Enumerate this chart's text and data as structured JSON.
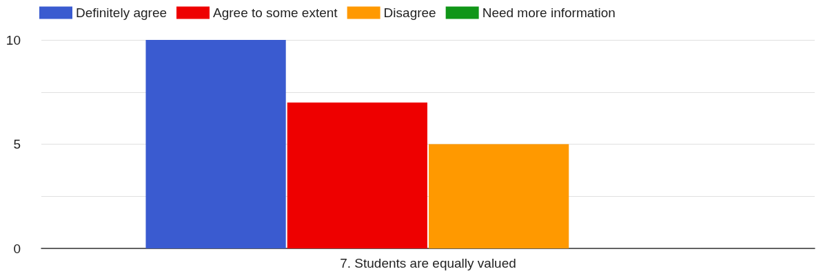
{
  "chart_data": {
    "type": "bar",
    "categories": [
      "7. Students are equally valued"
    ],
    "series": [
      {
        "name": "Definitely agree",
        "color": "#3a5bd0",
        "values": [
          10
        ]
      },
      {
        "name": "Agree to some extent",
        "color": "#ee0000",
        "values": [
          7
        ]
      },
      {
        "name": "Disagree",
        "color": "#ff9900",
        "values": [
          5
        ]
      },
      {
        "name": "Need more information",
        "color": "#109618",
        "values": [
          0
        ]
      }
    ],
    "ylim": [
      0,
      10
    ],
    "yticks": [
      0,
      {
        "value": 2.5,
        "label": null
      },
      5,
      {
        "value": 7.5,
        "label": null
      },
      10
    ],
    "grid": "y",
    "legend": "top left"
  }
}
